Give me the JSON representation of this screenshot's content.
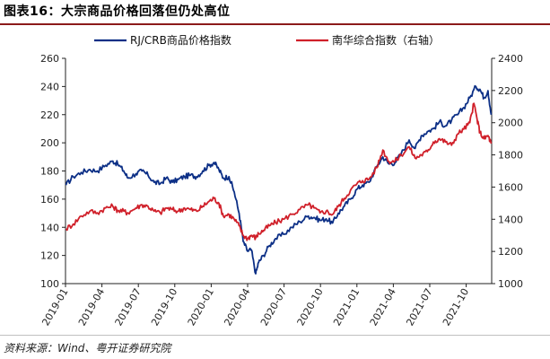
{
  "figure": {
    "title": "图表16：大宗商品价格回落但仍处高位",
    "source": "资料来源：Wind、粤开证券研究院"
  },
  "colors": {
    "crb": "#0c2f86",
    "nanhua": "#d0202a",
    "axis": "#222222",
    "rule": "#8b1a1a"
  },
  "chart_data": {
    "type": "line",
    "x_tick_labels": [
      "2019-01",
      "2019-04",
      "2019-07",
      "2019-10",
      "2020-01",
      "2020-04",
      "2020-07",
      "2020-10",
      "2021-01",
      "2021-04",
      "2021-07",
      "2021-10"
    ],
    "x_range": [
      "2019-01",
      "2021-12"
    ],
    "left_axis": {
      "ylim": [
        100,
        260
      ],
      "ticks": [
        100,
        120,
        140,
        160,
        180,
        200,
        220,
        240,
        260
      ]
    },
    "right_axis": {
      "ylim": [
        1000,
        2400
      ],
      "ticks": [
        1000,
        1200,
        1400,
        1600,
        1800,
        2000,
        2200,
        2400
      ]
    },
    "legend_position": "top",
    "grid": false,
    "series": [
      {
        "name": "RJ/CRB商品价格指数",
        "axis": "left",
        "color": "#0c2f86",
        "points": [
          [
            "2019-01-02",
            170
          ],
          [
            "2019-01-20",
            176
          ],
          [
            "2019-02-10",
            179
          ],
          [
            "2019-03-01",
            181
          ],
          [
            "2019-03-20",
            180
          ],
          [
            "2019-04-10",
            184
          ],
          [
            "2019-04-28",
            187
          ],
          [
            "2019-05-10",
            185
          ],
          [
            "2019-05-25",
            180
          ],
          [
            "2019-06-05",
            175
          ],
          [
            "2019-06-25",
            178
          ],
          [
            "2019-07-10",
            180
          ],
          [
            "2019-07-25",
            177
          ],
          [
            "2019-08-10",
            172
          ],
          [
            "2019-08-25",
            171
          ],
          [
            "2019-09-10",
            175
          ],
          [
            "2019-09-25",
            172
          ],
          [
            "2019-10-10",
            174
          ],
          [
            "2019-10-25",
            176
          ],
          [
            "2019-11-10",
            177
          ],
          [
            "2019-11-25",
            176
          ],
          [
            "2019-12-10",
            180
          ],
          [
            "2019-12-25",
            184
          ],
          [
            "2020-01-08",
            186
          ],
          [
            "2020-01-20",
            181
          ],
          [
            "2020-02-01",
            175
          ],
          [
            "2020-02-15",
            176
          ],
          [
            "2020-02-28",
            165
          ],
          [
            "2020-03-10",
            150
          ],
          [
            "2020-03-20",
            130
          ],
          [
            "2020-03-31",
            123
          ],
          [
            "2020-04-10",
            124
          ],
          [
            "2020-04-21",
            107
          ],
          [
            "2020-04-28",
            115
          ],
          [
            "2020-05-10",
            120
          ],
          [
            "2020-05-25",
            127
          ],
          [
            "2020-06-10",
            132
          ],
          [
            "2020-06-30",
            135
          ],
          [
            "2020-07-20",
            140
          ],
          [
            "2020-08-10",
            144
          ],
          [
            "2020-08-31",
            148
          ],
          [
            "2020-09-15",
            147
          ],
          [
            "2020-09-30",
            145
          ],
          [
            "2020-10-15",
            146
          ],
          [
            "2020-10-31",
            143
          ],
          [
            "2020-11-15",
            150
          ],
          [
            "2020-11-30",
            155
          ],
          [
            "2020-12-15",
            160
          ],
          [
            "2020-12-31",
            167
          ],
          [
            "2021-01-15",
            170
          ],
          [
            "2021-02-01",
            172
          ],
          [
            "2021-02-20",
            183
          ],
          [
            "2021-03-05",
            190
          ],
          [
            "2021-03-20",
            185
          ],
          [
            "2021-04-05",
            186
          ],
          [
            "2021-04-20",
            192
          ],
          [
            "2021-05-10",
            202
          ],
          [
            "2021-05-25",
            196
          ],
          [
            "2021-06-10",
            205
          ],
          [
            "2021-06-25",
            208
          ],
          [
            "2021-07-10",
            210
          ],
          [
            "2021-07-25",
            215
          ],
          [
            "2021-08-10",
            212
          ],
          [
            "2021-08-25",
            216
          ],
          [
            "2021-09-10",
            220
          ],
          [
            "2021-09-25",
            225
          ],
          [
            "2021-10-10",
            232
          ],
          [
            "2021-10-25",
            240
          ],
          [
            "2021-11-05",
            238
          ],
          [
            "2021-11-15",
            232
          ],
          [
            "2021-11-25",
            237
          ],
          [
            "2021-12-03",
            220
          ]
        ]
      },
      {
        "name": "南华综合指数（右轴）",
        "axis": "right",
        "color": "#d0202a",
        "points": [
          [
            "2019-01-02",
            1340
          ],
          [
            "2019-01-20",
            1370
          ],
          [
            "2019-02-10",
            1420
          ],
          [
            "2019-03-01",
            1450
          ],
          [
            "2019-03-20",
            1440
          ],
          [
            "2019-04-10",
            1470
          ],
          [
            "2019-04-28",
            1480
          ],
          [
            "2019-05-10",
            1455
          ],
          [
            "2019-05-25",
            1450
          ],
          [
            "2019-06-05",
            1440
          ],
          [
            "2019-06-25",
            1470
          ],
          [
            "2019-07-10",
            1490
          ],
          [
            "2019-07-25",
            1480
          ],
          [
            "2019-08-10",
            1450
          ],
          [
            "2019-08-25",
            1440
          ],
          [
            "2019-09-10",
            1470
          ],
          [
            "2019-09-25",
            1460
          ],
          [
            "2019-10-10",
            1450
          ],
          [
            "2019-10-25",
            1470
          ],
          [
            "2019-11-10",
            1460
          ],
          [
            "2019-11-25",
            1450
          ],
          [
            "2019-12-10",
            1480
          ],
          [
            "2019-12-25",
            1510
          ],
          [
            "2020-01-08",
            1530
          ],
          [
            "2020-01-20",
            1500
          ],
          [
            "2020-02-01",
            1420
          ],
          [
            "2020-02-15",
            1430
          ],
          [
            "2020-02-28",
            1400
          ],
          [
            "2020-03-10",
            1360
          ],
          [
            "2020-03-20",
            1300
          ],
          [
            "2020-03-31",
            1280
          ],
          [
            "2020-04-10",
            1300
          ],
          [
            "2020-04-21",
            1285
          ],
          [
            "2020-04-28",
            1310
          ],
          [
            "2020-05-10",
            1330
          ],
          [
            "2020-05-25",
            1360
          ],
          [
            "2020-06-10",
            1380
          ],
          [
            "2020-06-30",
            1400
          ],
          [
            "2020-07-20",
            1430
          ],
          [
            "2020-08-10",
            1460
          ],
          [
            "2020-08-31",
            1490
          ],
          [
            "2020-09-15",
            1470
          ],
          [
            "2020-09-30",
            1440
          ],
          [
            "2020-10-15",
            1450
          ],
          [
            "2020-10-31",
            1430
          ],
          [
            "2020-11-15",
            1480
          ],
          [
            "2020-11-30",
            1530
          ],
          [
            "2020-12-15",
            1580
          ],
          [
            "2020-12-31",
            1620
          ],
          [
            "2021-01-15",
            1640
          ],
          [
            "2021-02-01",
            1650
          ],
          [
            "2021-02-20",
            1720
          ],
          [
            "2021-03-05",
            1830
          ],
          [
            "2021-03-20",
            1760
          ],
          [
            "2021-04-05",
            1760
          ],
          [
            "2021-04-20",
            1800
          ],
          [
            "2021-05-10",
            1850
          ],
          [
            "2021-05-25",
            1780
          ],
          [
            "2021-06-10",
            1800
          ],
          [
            "2021-06-25",
            1820
          ],
          [
            "2021-07-10",
            1880
          ],
          [
            "2021-07-25",
            1900
          ],
          [
            "2021-08-10",
            1880
          ],
          [
            "2021-08-25",
            1860
          ],
          [
            "2021-09-10",
            1930
          ],
          [
            "2021-09-25",
            1960
          ],
          [
            "2021-10-10",
            2000
          ],
          [
            "2021-10-20",
            2120
          ],
          [
            "2021-10-28",
            2020
          ],
          [
            "2021-11-05",
            1940
          ],
          [
            "2021-11-15",
            1900
          ],
          [
            "2021-11-25",
            1920
          ],
          [
            "2021-12-03",
            1870
          ]
        ]
      }
    ]
  }
}
